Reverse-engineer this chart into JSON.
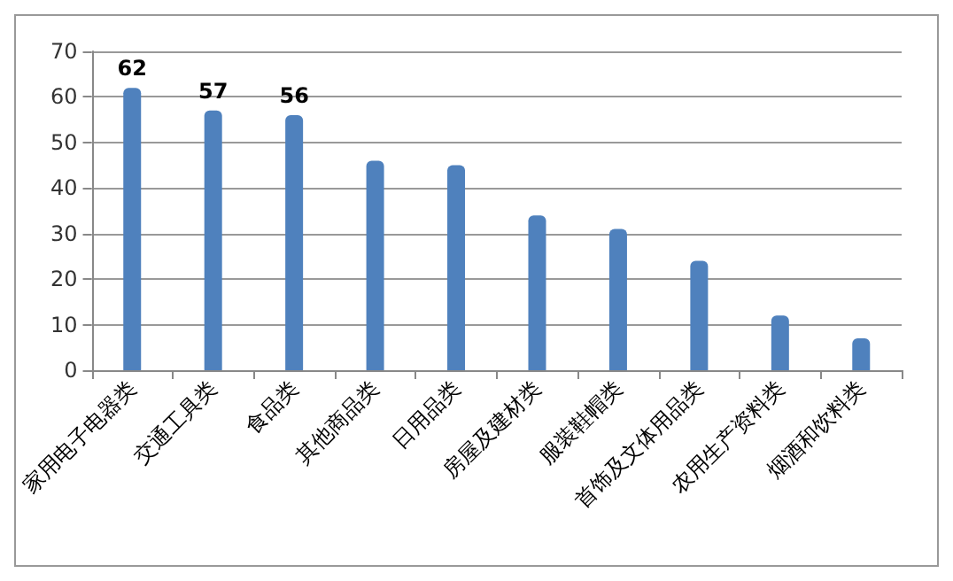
{
  "chart_data": {
    "type": "bar",
    "categories": [
      "家用电子电器类",
      "交通工具类",
      "食品类",
      "其他商品类",
      "日用品类",
      "房屋及建材类",
      "服装鞋帽类",
      "首饰及文体用品类",
      "农用生产资料类",
      "烟酒和饮料类"
    ],
    "values": [
      62,
      57,
      56,
      46,
      45,
      34,
      31,
      24,
      12,
      7
    ],
    "value_labels": [
      "62",
      "57",
      "56",
      null,
      null,
      null,
      null,
      null,
      null,
      null
    ],
    "color": "#4f81bd",
    "ylim": [
      0,
      70
    ],
    "yticks": [
      0,
      10,
      20,
      30,
      40,
      50,
      60,
      70
    ],
    "grid": "y"
  }
}
